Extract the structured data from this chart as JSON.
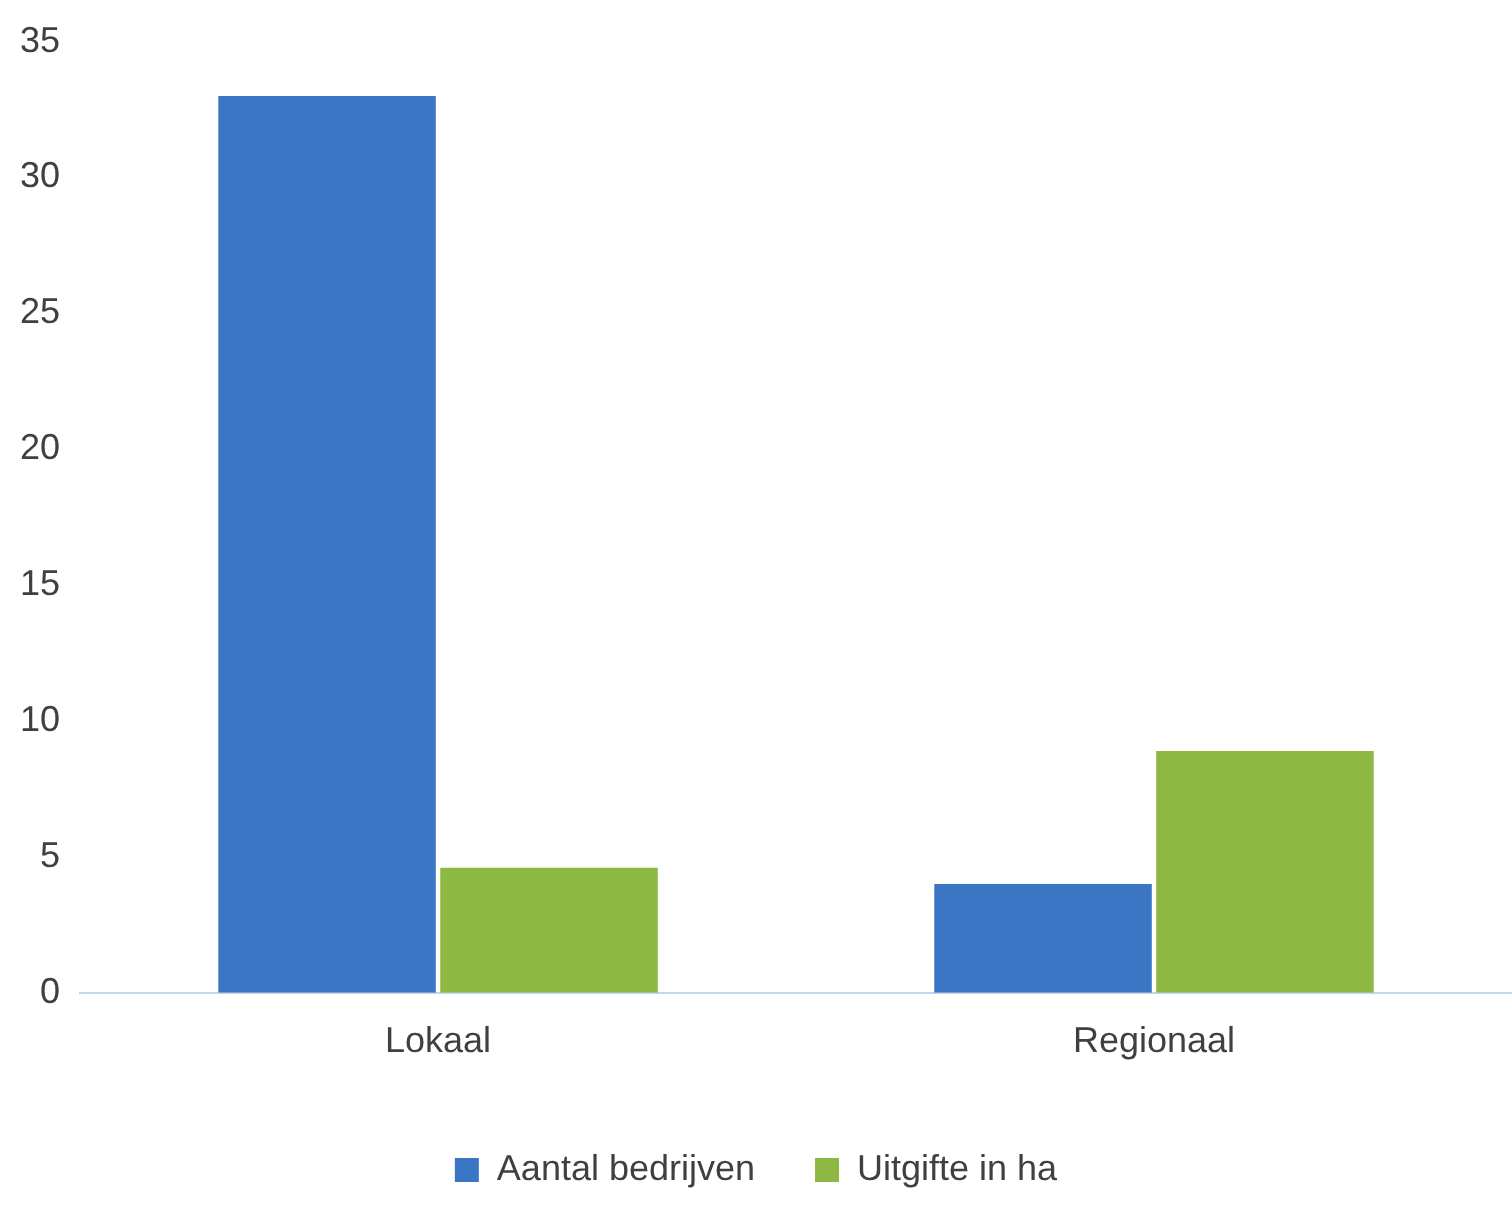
{
  "chart_data": {
    "type": "bar",
    "categories": [
      "Lokaal",
      "Regionaal"
    ],
    "series": [
      {
        "name": "Aantal bedrijven",
        "color": "#3a76c4",
        "values": [
          33,
          4
        ]
      },
      {
        "name": "Uitgifte in ha",
        "color": "#8db843",
        "values": [
          4.6,
          8.9
        ]
      }
    ],
    "ylim": [
      0,
      35
    ],
    "yticks": [
      0,
      5,
      10,
      15,
      20,
      25,
      30,
      35
    ],
    "grid": false,
    "legend": "bottom"
  }
}
